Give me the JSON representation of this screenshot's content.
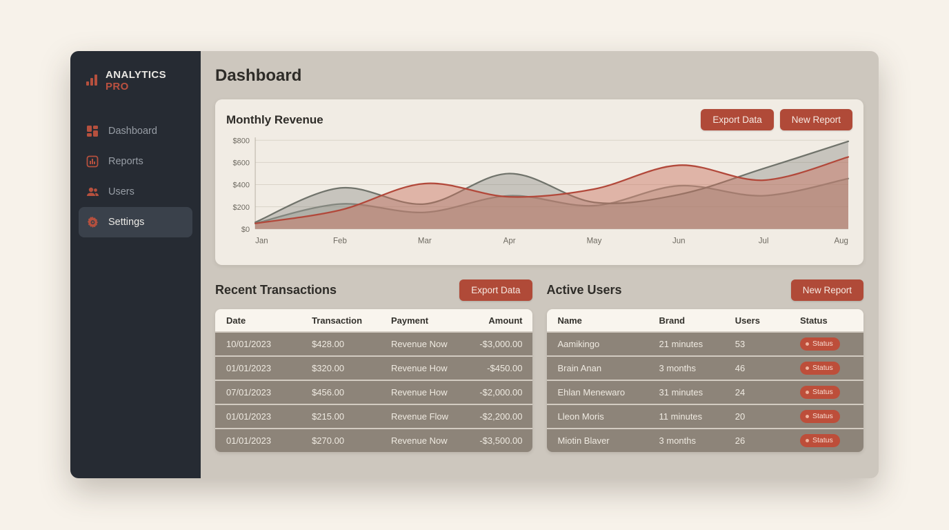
{
  "app": {
    "title": "Dashboard"
  },
  "colors": {
    "accent_red": "#b04a38",
    "sidebar_bg": "#262b33",
    "content_bg": "#cdc7be",
    "card_bg": "#f1ece4",
    "row_bg": "#8d8479",
    "badge_red": "#bd4e3a"
  },
  "sidebar": {
    "brand": {
      "name": "ANALYTICS",
      "suffix": "PRO"
    },
    "items": [
      {
        "label": "Dashboard",
        "icon": "grid-icon",
        "active": false
      },
      {
        "label": "Reports",
        "icon": "report-icon",
        "active": false
      },
      {
        "label": "Users",
        "icon": "users-icon",
        "active": false
      },
      {
        "label": "Settings",
        "icon": "gear-icon",
        "active": true
      }
    ]
  },
  "revenue_card": {
    "title": "Monthly Revenue",
    "buttons": {
      "export": "Export Data",
      "new_report": "New Report"
    }
  },
  "chart_data": {
    "type": "area",
    "title": "Monthly Revenue",
    "x": [
      "Jan",
      "Feb",
      "Mar",
      "Apr",
      "May",
      "Jun",
      "Jul",
      "Aug"
    ],
    "ylim": [
      0,
      800
    ],
    "yticks": [
      0,
      200,
      400,
      600,
      800
    ],
    "ytick_labels": [
      "$0",
      "$200",
      "$400",
      "$600",
      "$800"
    ],
    "grid": true,
    "legend": "none",
    "series": [
      {
        "name": "series-light-gray",
        "color": "#8a8d84",
        "fill": "rgba(138,141,132,0.32)",
        "values": [
          50,
          225,
          150,
          300,
          210,
          390,
          300,
          455
        ]
      },
      {
        "name": "series-dark-gray",
        "color": "#70736b",
        "fill": "rgba(118,121,113,0.34)",
        "values": [
          60,
          370,
          225,
          500,
          240,
          310,
          545,
          790
        ]
      },
      {
        "name": "revenue",
        "color": "#b2483a",
        "fill": "rgba(202,112,94,0.45)",
        "values": [
          50,
          170,
          410,
          290,
          360,
          575,
          440,
          650
        ]
      }
    ]
  },
  "transactions": {
    "title": "Recent Transactions",
    "button": "Export Data",
    "columns": [
      "Date",
      "Transaction",
      "Payment",
      "Amount"
    ],
    "rows": [
      {
        "date": "10/01/2023",
        "transaction": "$428.00",
        "payment": "Revenue Now",
        "amount": "-$3,000.00"
      },
      {
        "date": "01/01/2023",
        "transaction": "$320.00",
        "payment": "Revenue How",
        "amount": "-$450.00"
      },
      {
        "date": "07/01/2023",
        "transaction": "$456.00",
        "payment": "Revenue How",
        "amount": "-$2,000.00"
      },
      {
        "date": "01/01/2023",
        "transaction": "$215.00",
        "payment": "Revenue Flow",
        "amount": "-$2,200.00"
      },
      {
        "date": "01/01/2023",
        "transaction": "$270.00",
        "payment": "Revenue Now",
        "amount": "-$3,500.00"
      }
    ]
  },
  "active_users": {
    "title": "Active Users",
    "button": "New Report",
    "columns": [
      "Name",
      "Brand",
      "Users",
      "Status"
    ],
    "rows": [
      {
        "name": "Aamikingo",
        "brand": "21 minutes",
        "users": "53",
        "status": "Status"
      },
      {
        "name": "Brain Anan",
        "brand": "3 months",
        "users": "46",
        "status": "Status"
      },
      {
        "name": "Ehlan Menewaro",
        "brand": "31 minutes",
        "users": "24",
        "status": "Status"
      },
      {
        "name": "Lleon Moris",
        "brand": "11 minutes",
        "users": "20",
        "status": "Status"
      },
      {
        "name": "Miotin Blaver",
        "brand": "3 months",
        "users": "26",
        "status": "Status"
      }
    ]
  }
}
